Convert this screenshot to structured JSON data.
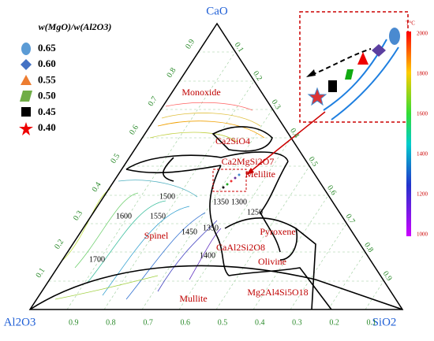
{
  "legend": {
    "title": "w(MgO)/w(Al2O3)",
    "entries": [
      "0.65",
      "0.60",
      "0.55",
      "0.50",
      "0.45",
      "0.40"
    ]
  },
  "corners": {
    "top": "CaO",
    "left": "Al2O3",
    "right": "SiO2"
  },
  "phases": [
    "Monoxide",
    "Ca2SiO4",
    "Ca2MgSi2O7",
    "Melilite",
    "Spinel",
    "Pyroxene",
    "CaAl2Si2O8",
    "Olivine",
    "Mg2Al4Si5O18",
    "Mullite"
  ],
  "isotherms": [
    "1500",
    "1600",
    "1550",
    "1450",
    "1350",
    "1300",
    "1250",
    "1350",
    "1400",
    "1700"
  ],
  "ticks": {
    "bottom": [
      "0.9",
      "0.8",
      "0.7",
      "0.6",
      "0.5",
      "0.4",
      "0.3",
      "0.2",
      "0.1"
    ],
    "left": [
      "0.1",
      "0.2",
      "0.3",
      "0.4",
      "0.5",
      "0.6",
      "0.7",
      "0.8",
      "0.9"
    ],
    "right": [
      "0.1",
      "0.2",
      "0.3",
      "0.4",
      "0.5",
      "0.6",
      "0.7",
      "0.8",
      "0.9"
    ]
  },
  "colorbar": {
    "title": "T°C",
    "ticks": [
      "2000",
      "1800",
      "1600",
      "1400",
      "1200",
      "1000"
    ]
  }
}
